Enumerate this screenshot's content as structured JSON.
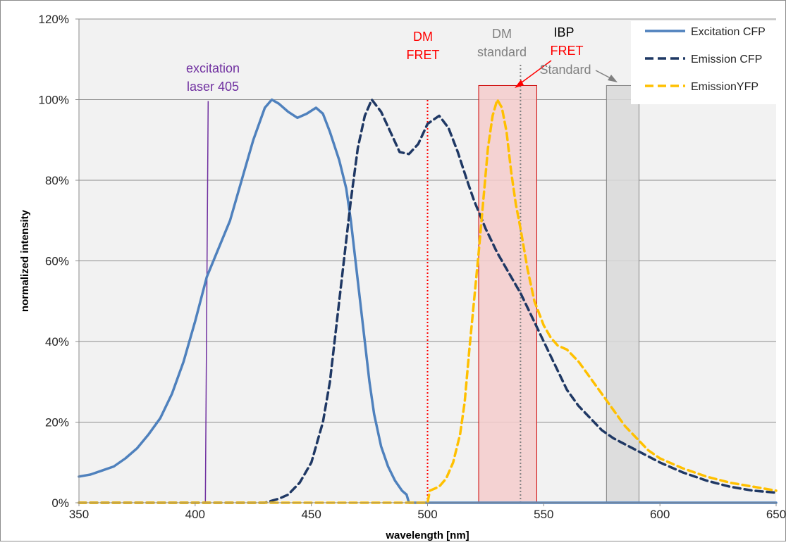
{
  "chart_data": {
    "type": "line",
    "xlabel": "wavelength [nm]",
    "ylabel": "normalized intensity",
    "xlim": [
      350,
      650
    ],
    "ylim": [
      0,
      120
    ],
    "xticks": [
      350,
      400,
      450,
      500,
      550,
      600,
      650
    ],
    "yticks": [
      0,
      20,
      40,
      60,
      80,
      100,
      120
    ],
    "x_tick_labels": [
      "350",
      "400",
      "450",
      "500",
      "550",
      "600",
      "650"
    ],
    "y_tick_labels": [
      "0%",
      "20%",
      "40%",
      "60%",
      "80%",
      "100%",
      "120%"
    ],
    "grid": "horizontal",
    "legend_position": "top-right",
    "series": [
      {
        "name": "Excitation CFP",
        "color": "#4f81bd",
        "style": "solid",
        "points": [
          [
            350,
            6.5
          ],
          [
            355,
            7
          ],
          [
            360,
            8
          ],
          [
            365,
            9
          ],
          [
            370,
            11
          ],
          [
            375,
            13.5
          ],
          [
            380,
            17
          ],
          [
            385,
            21
          ],
          [
            390,
            27
          ],
          [
            395,
            35
          ],
          [
            400,
            45
          ],
          [
            405,
            56
          ],
          [
            410,
            63
          ],
          [
            415,
            70
          ],
          [
            420,
            80
          ],
          [
            425,
            90
          ],
          [
            430,
            98
          ],
          [
            433,
            100
          ],
          [
            436,
            99
          ],
          [
            440,
            97
          ],
          [
            444,
            95.5
          ],
          [
            448,
            96.5
          ],
          [
            452,
            98
          ],
          [
            455,
            96.5
          ],
          [
            458,
            92
          ],
          [
            462,
            85
          ],
          [
            465,
            78
          ],
          [
            467,
            70
          ],
          [
            469,
            60
          ],
          [
            471,
            50
          ],
          [
            473,
            40
          ],
          [
            475,
            30
          ],
          [
            477,
            22
          ],
          [
            480,
            14
          ],
          [
            483,
            9
          ],
          [
            486,
            5.5
          ],
          [
            489,
            3
          ],
          [
            491,
            2
          ],
          [
            492,
            0
          ],
          [
            500,
            0
          ],
          [
            520,
            0
          ],
          [
            550,
            0
          ],
          [
            600,
            0
          ],
          [
            650,
            0
          ]
        ]
      },
      {
        "name": "Emission CFP",
        "color": "#1f3864",
        "style": "dash",
        "points": [
          [
            350,
            0
          ],
          [
            400,
            0
          ],
          [
            430,
            0
          ],
          [
            436,
            1
          ],
          [
            440,
            2
          ],
          [
            445,
            5
          ],
          [
            450,
            10
          ],
          [
            455,
            20
          ],
          [
            458,
            30
          ],
          [
            461,
            45
          ],
          [
            464,
            60
          ],
          [
            467,
            75
          ],
          [
            470,
            88
          ],
          [
            473,
            96
          ],
          [
            476,
            100
          ],
          [
            480,
            97
          ],
          [
            484,
            92
          ],
          [
            488,
            87
          ],
          [
            492,
            86.5
          ],
          [
            496,
            89
          ],
          [
            500,
            94
          ],
          [
            505,
            96
          ],
          [
            509,
            93
          ],
          [
            513,
            87
          ],
          [
            517,
            80
          ],
          [
            520,
            75
          ],
          [
            525,
            68
          ],
          [
            530,
            62
          ],
          [
            535,
            57
          ],
          [
            540,
            52
          ],
          [
            545,
            46
          ],
          [
            550,
            40
          ],
          [
            555,
            34
          ],
          [
            560,
            28
          ],
          [
            565,
            24
          ],
          [
            570,
            21
          ],
          [
            575,
            18
          ],
          [
            580,
            16
          ],
          [
            590,
            13
          ],
          [
            600,
            10
          ],
          [
            610,
            7.5
          ],
          [
            620,
            5.5
          ],
          [
            630,
            4
          ],
          [
            640,
            3
          ],
          [
            650,
            2.5
          ]
        ]
      },
      {
        "name": "EmissionYFP",
        "color": "#ffc000",
        "style": "dash",
        "points": [
          [
            350,
            0
          ],
          [
            400,
            0
          ],
          [
            450,
            0
          ],
          [
            500,
            0
          ],
          [
            501,
            3
          ],
          [
            505,
            4
          ],
          [
            508,
            6
          ],
          [
            511,
            10
          ],
          [
            514,
            17
          ],
          [
            516,
            25
          ],
          [
            518,
            38
          ],
          [
            520,
            50
          ],
          [
            522,
            62
          ],
          [
            524,
            75
          ],
          [
            526,
            88
          ],
          [
            528,
            96
          ],
          [
            530,
            100
          ],
          [
            532,
            98
          ],
          [
            534,
            92
          ],
          [
            536,
            82
          ],
          [
            538,
            74
          ],
          [
            540,
            68
          ],
          [
            543,
            58
          ],
          [
            546,
            50
          ],
          [
            550,
            44
          ],
          [
            553,
            41
          ],
          [
            556,
            39
          ],
          [
            560,
            38
          ],
          [
            565,
            35
          ],
          [
            570,
            31
          ],
          [
            575,
            27
          ],
          [
            580,
            23
          ],
          [
            585,
            19
          ],
          [
            590,
            16
          ],
          [
            595,
            13
          ],
          [
            600,
            11
          ],
          [
            610,
            8.5
          ],
          [
            620,
            6.5
          ],
          [
            630,
            5
          ],
          [
            640,
            4
          ],
          [
            650,
            3
          ]
        ]
      }
    ],
    "overlays": [
      {
        "kind": "vline",
        "x": 405,
        "y_top": 100,
        "color": "#7030a0",
        "label": [
          "excitation",
          "laser 405"
        ]
      },
      {
        "kind": "vline-dotted",
        "x": 500,
        "y_top": 100,
        "color": "#ff0000",
        "label": [
          "DM",
          "FRET"
        ]
      },
      {
        "kind": "vline-dotted",
        "x": 540,
        "y_top": 109,
        "color": "#808080",
        "label": [
          "DM",
          "standard"
        ]
      },
      {
        "kind": "band",
        "x0": 522,
        "x1": 547,
        "y_top": 103.5,
        "fill": "#f4cccc",
        "stroke": "#cc0000",
        "label": [
          "IBP",
          "FRET"
        ],
        "label_colors": [
          "#000000",
          "#ff0000"
        ]
      },
      {
        "kind": "band",
        "x0": 577,
        "x1": 591,
        "y_top": 103.5,
        "fill": "#d9d9d9",
        "stroke": "#808080",
        "label": [
          "Standard"
        ]
      }
    ]
  }
}
